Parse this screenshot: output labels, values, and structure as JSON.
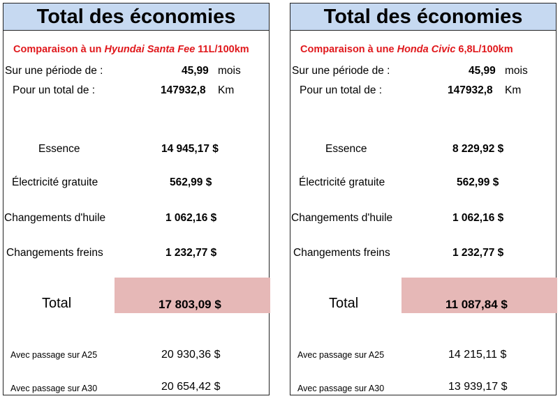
{
  "panels": [
    {
      "title": "Total des économies",
      "comparison_prefix": "Comparaison à un",
      "comparison_model": "Hyundai Santa Fee",
      "comparison_consumption": "11L/100km",
      "period_label": "Sur une période de :",
      "period_value": "45,99",
      "period_unit": "mois",
      "distance_label": "Pour un total de :",
      "distance_value": "147932,8",
      "distance_unit": "Km",
      "rows": [
        {
          "label": "Essence",
          "value": "14 945,17 $"
        },
        {
          "label": "Électricité gratuite",
          "value": "562,99 $"
        },
        {
          "label": "Changements d'huile",
          "value": "1 062,16 $"
        },
        {
          "label": "Changements freins",
          "value": "1 232,77 $"
        }
      ],
      "total_label": "Total",
      "total_value": "17 803,09 $",
      "a25_label": "Avec passage sur A25",
      "a25_value": "20 930,36 $",
      "a30_label": "Avec passage sur A30",
      "a30_value": "20 654,42 $"
    },
    {
      "title": "Total des économies",
      "comparison_prefix": "Comparaison à une",
      "comparison_model": "Honda Civic",
      "comparison_consumption": "6,8L/100km",
      "period_label": "Sur une période de :",
      "period_value": "45,99",
      "period_unit": "mois",
      "distance_label": "Pour un total de :",
      "distance_value": "147932,8",
      "distance_unit": "Km",
      "rows": [
        {
          "label": "Essence",
          "value": "8 229,92 $"
        },
        {
          "label": "Électricité gratuite",
          "value": "562,99 $"
        },
        {
          "label": "Changements d'huile",
          "value": "1 062,16 $"
        },
        {
          "label": "Changements freins",
          "value": "1 232,77 $"
        }
      ],
      "total_label": "Total",
      "total_value": "11 087,84 $",
      "a25_label": "Avec passage sur A25",
      "a25_value": "14 215,11 $",
      "a30_label": "Avec passage sur A30",
      "a30_value": "13 939,17 $"
    }
  ],
  "colors": {
    "title_bg": "#c6d9f1",
    "total_bg": "#e6b8b7",
    "comparison_text": "#e0181c"
  }
}
